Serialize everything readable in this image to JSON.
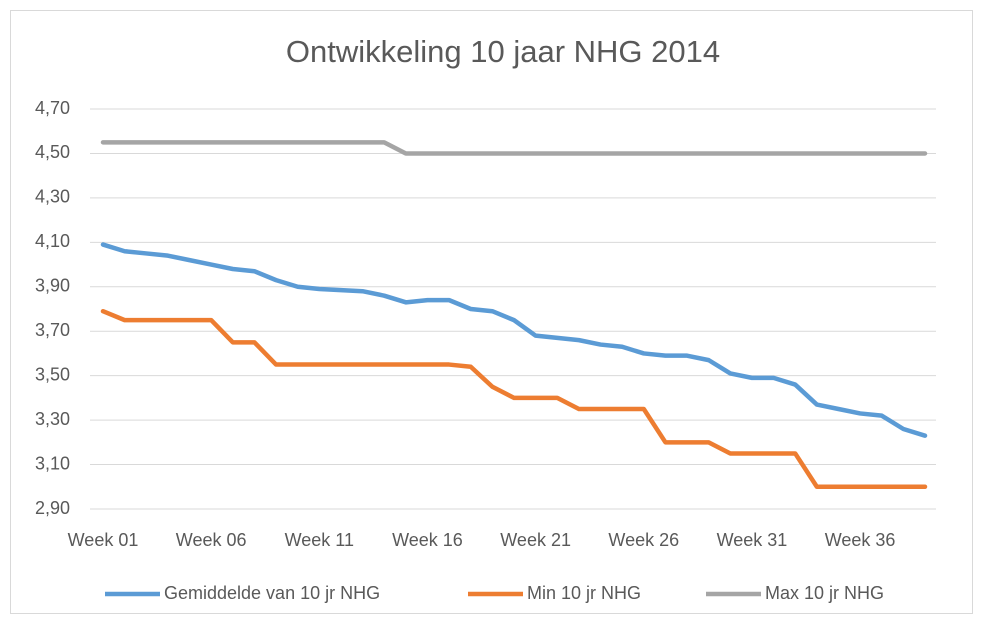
{
  "chart_data": {
    "type": "line",
    "title": "Ontwikkeling 10 jaar NHG 2014",
    "categories": [
      "Week 01",
      null,
      null,
      null,
      null,
      "Week 06",
      null,
      null,
      null,
      null,
      "Week 11",
      null,
      null,
      null,
      null,
      "Week 16",
      null,
      null,
      null,
      null,
      "Week 21",
      null,
      null,
      null,
      null,
      "Week 26",
      null,
      null,
      null,
      null,
      "Week 31",
      null,
      null,
      null,
      null,
      "Week 36",
      null,
      null,
      null
    ],
    "series": [
      {
        "name": "Gemiddelde van 10 jr NHG",
        "color": "#5b9bd5",
        "values": [
          4.09,
          4.06,
          4.05,
          4.04,
          4.02,
          4.0,
          3.98,
          3.97,
          3.93,
          3.9,
          3.89,
          3.885,
          3.88,
          3.86,
          3.83,
          3.84,
          3.84,
          3.8,
          3.79,
          3.75,
          3.68,
          3.67,
          3.66,
          3.64,
          3.63,
          3.6,
          3.59,
          3.59,
          3.57,
          3.51,
          3.49,
          3.49,
          3.46,
          3.37,
          3.35,
          3.33,
          3.32,
          3.26,
          3.23
        ]
      },
      {
        "name": "Min 10 jr NHG",
        "color": "#ed7d31",
        "values": [
          3.79,
          3.75,
          3.75,
          3.75,
          3.75,
          3.75,
          3.65,
          3.65,
          3.55,
          3.55,
          3.55,
          3.55,
          3.55,
          3.55,
          3.55,
          3.55,
          3.55,
          3.54,
          3.45,
          3.4,
          3.4,
          3.4,
          3.35,
          3.35,
          3.35,
          3.35,
          3.2,
          3.2,
          3.2,
          3.15,
          3.15,
          3.15,
          3.15,
          3.0,
          3.0,
          3.0,
          3.0,
          3.0,
          3.0
        ]
      },
      {
        "name": "Max 10 jr NHG",
        "color": "#a5a5a5",
        "values": [
          4.55,
          4.55,
          4.55,
          4.55,
          4.55,
          4.55,
          4.55,
          4.55,
          4.55,
          4.55,
          4.55,
          4.55,
          4.55,
          4.55,
          4.5,
          4.5,
          4.5,
          4.5,
          4.5,
          4.5,
          4.5,
          4.5,
          4.5,
          4.5,
          4.5,
          4.5,
          4.5,
          4.5,
          4.5,
          4.5,
          4.5,
          4.5,
          4.5,
          4.5,
          4.5,
          4.5,
          4.5,
          4.5,
          4.5
        ]
      }
    ],
    "ylim": [
      2.9,
      4.7
    ],
    "yticks": [
      {
        "value": 2.9,
        "label": "2,90"
      },
      {
        "value": 3.1,
        "label": "3,10"
      },
      {
        "value": 3.3,
        "label": "3,30"
      },
      {
        "value": 3.5,
        "label": "3,50"
      },
      {
        "value": 3.7,
        "label": "3,70"
      },
      {
        "value": 3.9,
        "label": "3,90"
      },
      {
        "value": 4.1,
        "label": "4,10"
      },
      {
        "value": 4.3,
        "label": "4,30"
      },
      {
        "value": 4.5,
        "label": "4,50"
      },
      {
        "value": 4.7,
        "label": "4,70"
      }
    ],
    "grid": true,
    "legend": "bottom"
  }
}
